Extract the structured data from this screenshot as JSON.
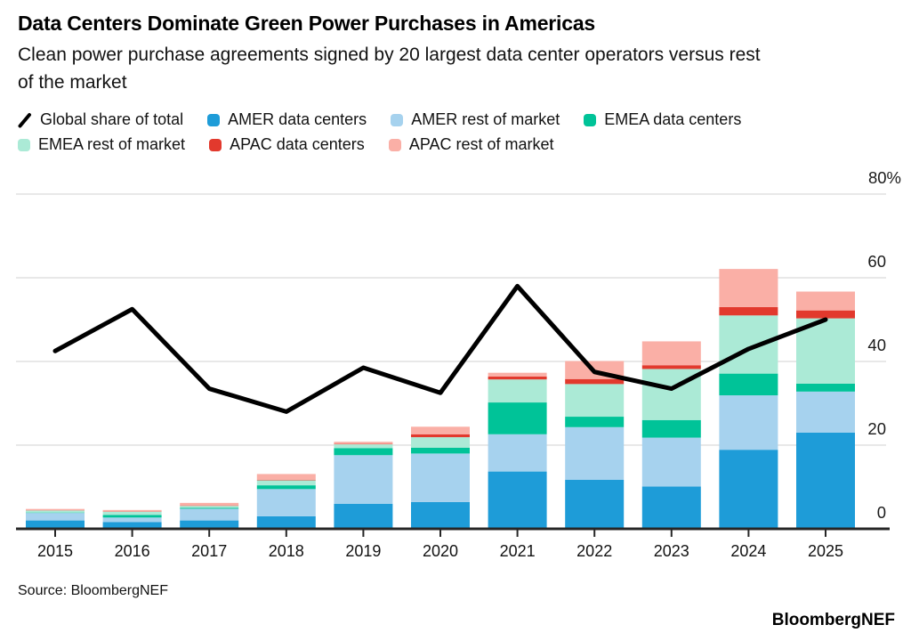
{
  "header": {
    "title": "Data Centers Dominate Green Power Purchases in Americas",
    "subtitle": "Clean power purchase agreements signed by 20 largest data center operators versus rest of the market"
  },
  "legend": {
    "rows": [
      [
        {
          "label": "Global share of total",
          "type": "line",
          "color": "#000000"
        },
        {
          "label": "AMER data centers",
          "type": "square",
          "color": "#1E9CD8"
        },
        {
          "label": "AMER rest of market",
          "type": "square",
          "color": "#A6D2EE"
        },
        {
          "label": "EMEA data centers",
          "type": "square",
          "color": "#00C398"
        }
      ],
      [
        {
          "label": "EMEA rest of market",
          "type": "square",
          "color": "#ABEAD6"
        },
        {
          "label": "APAC data centers",
          "type": "square",
          "color": "#E2392D"
        },
        {
          "label": "APAC rest of market",
          "type": "square",
          "color": "#FAAFA6"
        }
      ]
    ]
  },
  "chart_data": {
    "type": "bar",
    "subtype": "stacked-bars-with-line-overlay",
    "title": "Data Centers Dominate Green Power Purchases in Americas",
    "categories": [
      "2015",
      "2016",
      "2017",
      "2018",
      "2019",
      "2020",
      "2021",
      "2022",
      "2023",
      "2024",
      "2025"
    ],
    "ylim": [
      0,
      80
    ],
    "yticks": [
      0,
      20,
      40,
      60,
      80
    ],
    "ytick_labels": [
      "0",
      "20",
      "40",
      "60",
      "80%"
    ],
    "grid": "horizontal",
    "legend_position": "top",
    "axis_colors": {
      "gridline": "#d9d9d9",
      "baseline": "#262626",
      "tick_text": "#1a1a1a"
    },
    "series": [
      {
        "name": "AMER data centers",
        "color": "#1E9CD8",
        "values": [
          2.0,
          1.6,
          2.0,
          3.0,
          6.0,
          6.4,
          13.7,
          11.7,
          10.1,
          18.9,
          23.0
        ]
      },
      {
        "name": "AMER rest of market",
        "color": "#A6D2EE",
        "values": [
          1.8,
          1.1,
          2.8,
          6.5,
          11.6,
          11.6,
          8.9,
          12.6,
          11.7,
          13.0,
          9.8
        ]
      },
      {
        "name": "EMEA data centers",
        "color": "#00C398",
        "values": [
          0.1,
          0.6,
          0.2,
          0.9,
          1.7,
          1.4,
          7.6,
          2.5,
          4.2,
          5.2,
          1.9
        ]
      },
      {
        "name": "EMEA rest of market",
        "color": "#ABEAD6",
        "values": [
          0.5,
          0.8,
          0.5,
          1.2,
          0.9,
          2.5,
          5.5,
          7.8,
          12.2,
          13.9,
          15.6
        ]
      },
      {
        "name": "APAC data centers",
        "color": "#E2392D",
        "values": [
          0.05,
          0.05,
          0.1,
          0.1,
          0.1,
          0.7,
          0.7,
          1.2,
          0.9,
          2.0,
          1.9
        ]
      },
      {
        "name": "APAC rest of market",
        "color": "#FAAFA6",
        "values": [
          0.3,
          0.35,
          0.6,
          1.4,
          0.5,
          1.8,
          0.9,
          4.3,
          5.7,
          9.1,
          4.5
        ]
      }
    ],
    "line_series": {
      "name": "Global share of total",
      "color": "#000000",
      "values": [
        42.5,
        52.5,
        33.5,
        28,
        38.5,
        32.5,
        58,
        37.5,
        33.5,
        43,
        50
      ]
    }
  },
  "footer": {
    "source": "Source: BloombergNEF",
    "brand": "BloombergNEF"
  }
}
